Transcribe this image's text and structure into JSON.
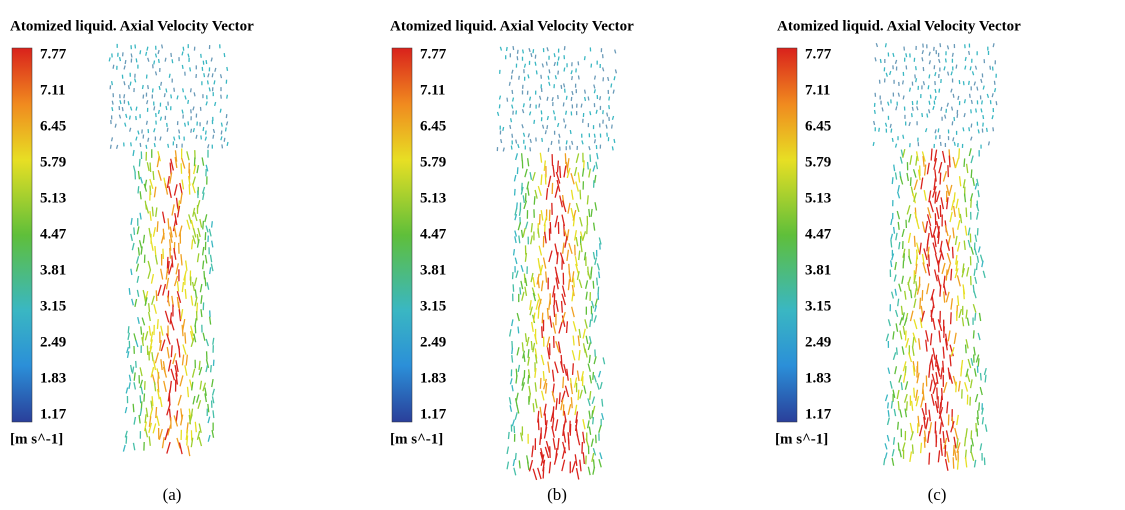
{
  "panels": [
    {
      "title": "Atomized liquid. Axial Velocity Vector",
      "ticks": [
        7.77,
        7.11,
        6.45,
        5.79,
        5.13,
        4.47,
        3.81,
        3.15,
        2.49,
        1.83,
        1.17
      ],
      "unit": "[m s^-1]",
      "caption": "(a)"
    },
    {
      "title": "Atomized liquid. Axial Velocity Vector",
      "ticks": [
        7.77,
        7.11,
        6.45,
        5.79,
        5.13,
        4.47,
        3.81,
        3.15,
        2.49,
        1.83,
        1.17
      ],
      "unit": "[m s^-1]",
      "caption": "(b)"
    },
    {
      "title": "Atomized liquid. Axial Velocity Vector",
      "ticks": [
        7.77,
        7.11,
        6.45,
        5.79,
        5.13,
        4.47,
        3.81,
        3.15,
        2.49,
        1.83,
        1.17
      ],
      "unit": "[m s^-1]",
      "caption": "(c)"
    }
  ]
}
